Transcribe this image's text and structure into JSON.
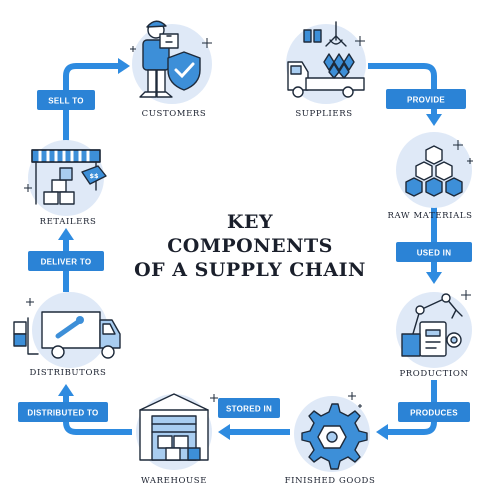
{
  "diagram": {
    "title_lines": [
      "KEY",
      "COMPONENTS",
      "OF A SUPPLY CHAIN"
    ],
    "nodes": {
      "customers": "CUSTOMERS",
      "suppliers": "SUPPLIERS",
      "raw_materials": "RAW MATERIALS",
      "production": "PRODUCTION",
      "finished_goods": "FINISHED GOODS",
      "warehouse": "WAREHOUSE",
      "distributors": "DISTRIBUTORS",
      "retailers": "RETAILERS"
    },
    "arrows": {
      "provide": "PROVIDE",
      "used_in": "USED IN",
      "produces": "PRODUCES",
      "stored_in": "STORED IN",
      "distributed_to": "DISTRIBUTED TO",
      "deliver_to": "DELIVER TO",
      "sell_to": "SELL TO"
    },
    "price_tag": "$$",
    "colors": {
      "accent": "#2e8be0",
      "disc": "#dfe9f7",
      "ink": "#1e2a3a"
    }
  }
}
